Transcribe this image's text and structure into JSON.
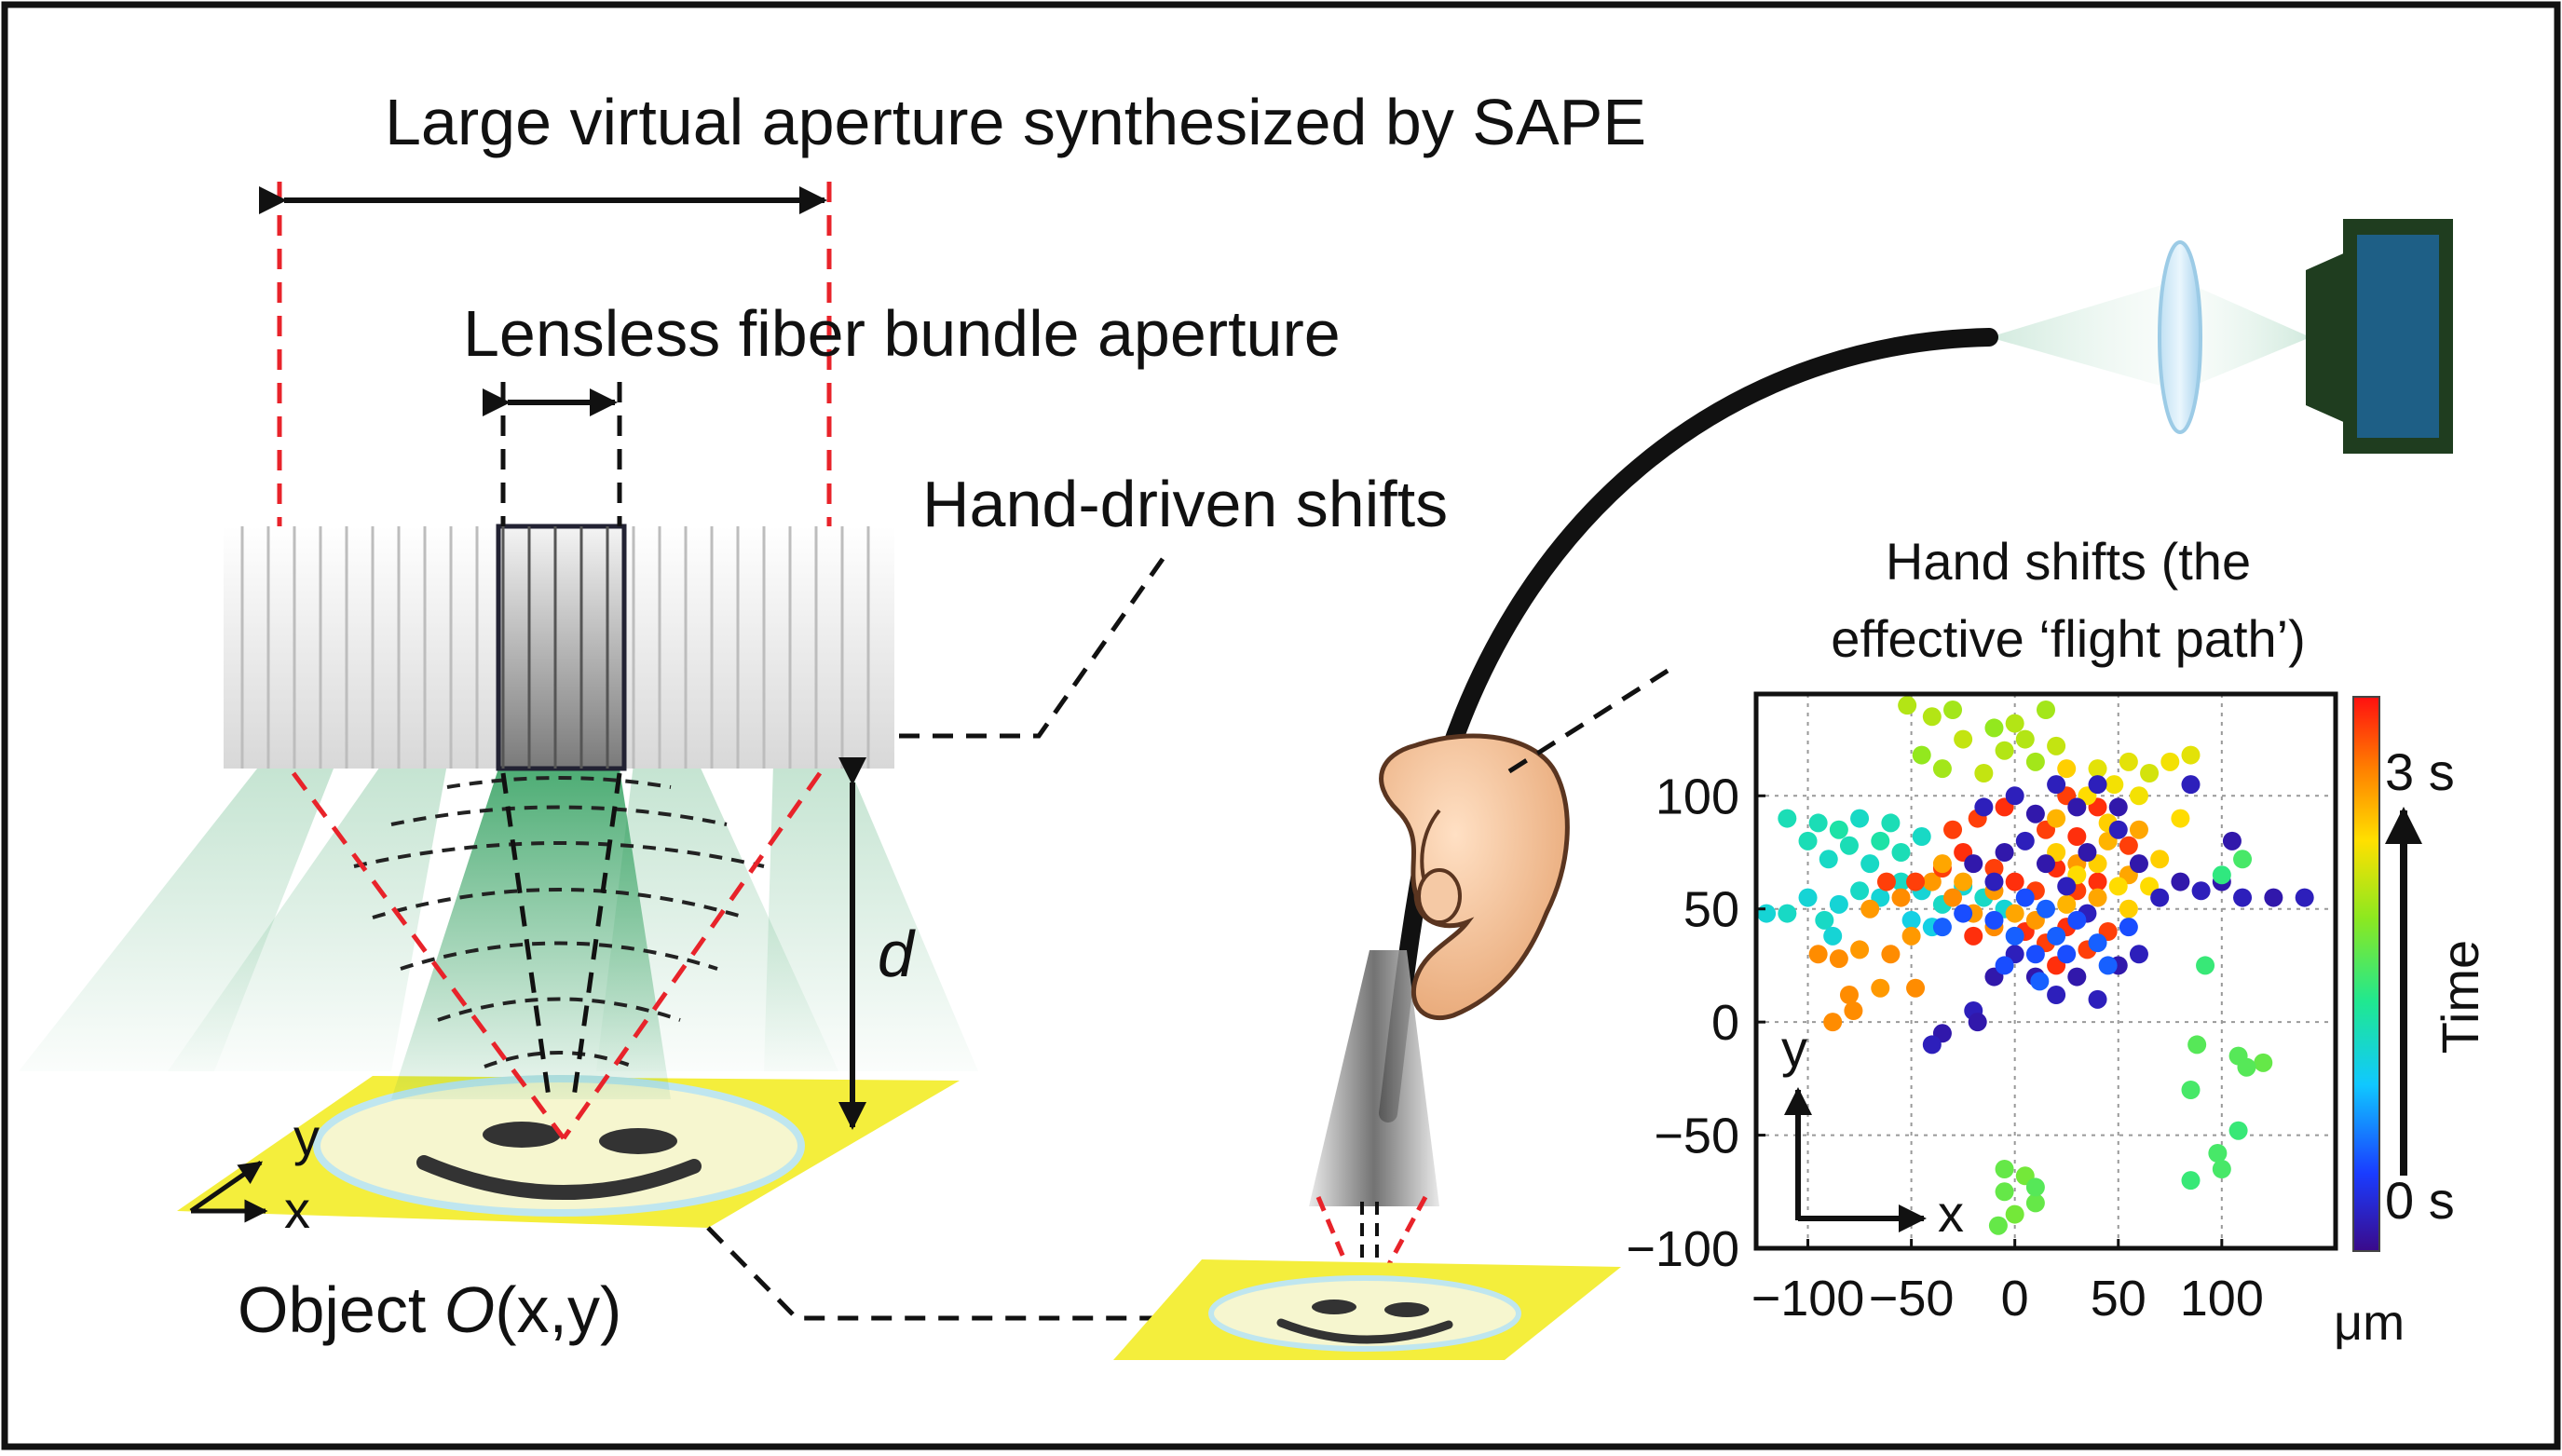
{
  "labels": {
    "large_aperture": "Large virtual aperture synthesized by SAPE",
    "fiber_aperture": "Lensless fiber bundle aperture",
    "hand_shifts": "Hand-driven shifts",
    "distance": "d",
    "axis_y": "y",
    "axis_x": "x",
    "object_prefix": "Object ",
    "object_symbol": "O",
    "object_suffix": "(x,y)"
  },
  "colors": {
    "red_dashed": "#e8232a",
    "beam_green": "#2e9e5c",
    "sample_yellow": "#f4ee3c",
    "camera_blue": "#1e5f86",
    "camera_green": "#1f3d1f"
  },
  "chart_data": {
    "type": "scatter",
    "title_line1": "Hand shifts (the",
    "title_line2": "effective ‘flight path’)",
    "xlim": [
      -125,
      155
    ],
    "ylim": [
      -100,
      145
    ],
    "x_ticks": [
      -100,
      -50,
      0,
      50,
      100
    ],
    "y_ticks": [
      -100,
      -50,
      0,
      50,
      100
    ],
    "x_tick_labels": [
      "−100",
      "−50",
      "0",
      "50",
      "100"
    ],
    "y_tick_labels": [
      "−100",
      "−50",
      "0",
      "50",
      "100"
    ],
    "x_unit": "μm",
    "grid": true,
    "inset_axis_y": "y",
    "inset_axis_x": "x",
    "colorbar": {
      "label": "Time",
      "min_label": "0 s",
      "max_label": "3 s",
      "colors": [
        "#3a0a8a",
        "#1a3cff",
        "#10c8ff",
        "#20e890",
        "#8ce820",
        "#ffe000",
        "#ff8000",
        "#ff1010"
      ]
    },
    "points": [
      [
        -52,
        140,
        0.62
      ],
      [
        -40,
        135,
        0.62
      ],
      [
        -30,
        138,
        0.6
      ],
      [
        -10,
        130,
        0.58
      ],
      [
        0,
        132,
        0.62
      ],
      [
        15,
        138,
        0.6
      ],
      [
        -25,
        125,
        0.64
      ],
      [
        -5,
        120,
        0.62
      ],
      [
        10,
        115,
        0.6
      ],
      [
        -15,
        110,
        0.64
      ],
      [
        -35,
        112,
        0.6
      ],
      [
        -45,
        118,
        0.58
      ],
      [
        5,
        125,
        0.62
      ],
      [
        20,
        122,
        0.64
      ],
      [
        40,
        112,
        0.68
      ],
      [
        55,
        115,
        0.68
      ],
      [
        65,
        110,
        0.66
      ],
      [
        75,
        115,
        0.7
      ],
      [
        85,
        118,
        0.68
      ],
      [
        48,
        105,
        0.7
      ],
      [
        60,
        100,
        0.7
      ],
      [
        -110,
        90,
        0.38
      ],
      [
        -95,
        88,
        0.38
      ],
      [
        -85,
        85,
        0.4
      ],
      [
        -75,
        90,
        0.36
      ],
      [
        -60,
        88,
        0.38
      ],
      [
        -65,
        80,
        0.4
      ],
      [
        -80,
        78,
        0.38
      ],
      [
        -90,
        72,
        0.36
      ],
      [
        -100,
        80,
        0.38
      ],
      [
        -70,
        70,
        0.36
      ],
      [
        -55,
        75,
        0.38
      ],
      [
        -45,
        82,
        0.36
      ],
      [
        -120,
        48,
        0.34
      ],
      [
        -110,
        48,
        0.36
      ],
      [
        -100,
        55,
        0.34
      ],
      [
        -92,
        45,
        0.36
      ],
      [
        -85,
        52,
        0.34
      ],
      [
        -75,
        58,
        0.36
      ],
      [
        -65,
        55,
        0.34
      ],
      [
        -55,
        62,
        0.36
      ],
      [
        -45,
        58,
        0.34
      ],
      [
        -35,
        52,
        0.36
      ],
      [
        -25,
        60,
        0.34
      ],
      [
        -15,
        55,
        0.36
      ],
      [
        -5,
        50,
        0.34
      ],
      [
        -50,
        45,
        0.32
      ],
      [
        -40,
        42,
        0.32
      ],
      [
        -88,
        38,
        0.34
      ],
      [
        -95,
        30,
        0.84
      ],
      [
        -85,
        28,
        0.84
      ],
      [
        -75,
        32,
        0.82
      ],
      [
        -60,
        30,
        0.84
      ],
      [
        -50,
        38,
        0.82
      ],
      [
        -70,
        50,
        0.82
      ],
      [
        -55,
        55,
        0.84
      ],
      [
        -40,
        62,
        0.82
      ],
      [
        -30,
        55,
        0.84
      ],
      [
        -20,
        48,
        0.82
      ],
      [
        -10,
        42,
        0.84
      ],
      [
        -80,
        12,
        0.84
      ],
      [
        -88,
        0,
        0.84
      ],
      [
        -78,
        5,
        0.84
      ],
      [
        -65,
        15,
        0.82
      ],
      [
        -48,
        15,
        0.84
      ],
      [
        -62,
        62,
        0.94
      ],
      [
        -48,
        62,
        0.94
      ],
      [
        -35,
        68,
        0.94
      ],
      [
        -25,
        75,
        0.96
      ],
      [
        -10,
        68,
        0.94
      ],
      [
        0,
        62,
        0.96
      ],
      [
        10,
        58,
        0.94
      ],
      [
        20,
        68,
        0.96
      ],
      [
        30,
        58,
        0.94
      ],
      [
        40,
        62,
        0.96
      ],
      [
        -18,
        90,
        0.94
      ],
      [
        -5,
        95,
        0.96
      ],
      [
        15,
        85,
        0.94
      ],
      [
        30,
        82,
        0.96
      ],
      [
        -30,
        85,
        0.94
      ],
      [
        5,
        40,
        0.96
      ],
      [
        15,
        35,
        0.94
      ],
      [
        25,
        42,
        0.96
      ],
      [
        35,
        32,
        0.94
      ],
      [
        20,
        25,
        0.96
      ],
      [
        45,
        40,
        0.94
      ],
      [
        25,
        100,
        0.94
      ],
      [
        40,
        95,
        0.96
      ],
      [
        55,
        78,
        0.94
      ],
      [
        -20,
        38,
        0.96
      ],
      [
        -35,
        70,
        0.8
      ],
      [
        -25,
        62,
        0.8
      ],
      [
        -10,
        58,
        0.82
      ],
      [
        0,
        48,
        0.8
      ],
      [
        10,
        45,
        0.82
      ],
      [
        25,
        52,
        0.78
      ],
      [
        40,
        55,
        0.8
      ],
      [
        55,
        65,
        0.8
      ],
      [
        30,
        70,
        0.82
      ],
      [
        45,
        80,
        0.78
      ],
      [
        60,
        85,
        0.8
      ],
      [
        20,
        90,
        0.78
      ],
      [
        20,
        75,
        0.74
      ],
      [
        30,
        65,
        0.72
      ],
      [
        40,
        70,
        0.74
      ],
      [
        50,
        60,
        0.72
      ],
      [
        55,
        50,
        0.74
      ],
      [
        65,
        60,
        0.72
      ],
      [
        70,
        72,
        0.74
      ],
      [
        80,
        90,
        0.72
      ],
      [
        45,
        88,
        0.74
      ],
      [
        35,
        100,
        0.72
      ],
      [
        25,
        112,
        0.74
      ],
      [
        -15,
        95,
        0.06
      ],
      [
        0,
        100,
        0.06
      ],
      [
        10,
        92,
        0.04
      ],
      [
        20,
        105,
        0.06
      ],
      [
        30,
        95,
        0.04
      ],
      [
        40,
        105,
        0.06
      ],
      [
        50,
        95,
        0.04
      ],
      [
        5,
        80,
        0.06
      ],
      [
        15,
        70,
        0.04
      ],
      [
        25,
        60,
        0.06
      ],
      [
        35,
        75,
        0.04
      ],
      [
        50,
        85,
        0.06
      ],
      [
        60,
        70,
        0.04
      ],
      [
        70,
        55,
        0.06
      ],
      [
        80,
        62,
        0.04
      ],
      [
        90,
        58,
        0.06
      ],
      [
        100,
        62,
        0.04
      ],
      [
        110,
        55,
        0.06
      ],
      [
        125,
        55,
        0.04
      ],
      [
        140,
        55,
        0.06
      ],
      [
        -5,
        75,
        0.04
      ],
      [
        -10,
        62,
        0.06
      ],
      [
        -20,
        70,
        0.04
      ],
      [
        0,
        30,
        0.06
      ],
      [
        10,
        20,
        0.04
      ],
      [
        20,
        12,
        0.06
      ],
      [
        30,
        20,
        0.04
      ],
      [
        40,
        10,
        0.06
      ],
      [
        50,
        25,
        0.04
      ],
      [
        60,
        30,
        0.06
      ],
      [
        -10,
        20,
        0.04
      ],
      [
        -20,
        5,
        0.06
      ],
      [
        -35,
        -5,
        0.04
      ],
      [
        -40,
        -10,
        0.06
      ],
      [
        -18,
        0,
        0.04
      ],
      [
        85,
        105,
        0.06
      ],
      [
        105,
        80,
        0.04
      ],
      [
        35,
        48,
        0.06
      ],
      [
        -10,
        45,
        0.16
      ],
      [
        0,
        38,
        0.18
      ],
      [
        10,
        30,
        0.16
      ],
      [
        20,
        38,
        0.18
      ],
      [
        30,
        45,
        0.16
      ],
      [
        40,
        35,
        0.18
      ],
      [
        5,
        55,
        0.16
      ],
      [
        15,
        50,
        0.18
      ],
      [
        25,
        30,
        0.16
      ],
      [
        12,
        18,
        0.18
      ],
      [
        -5,
        25,
        0.16
      ],
      [
        45,
        25,
        0.18
      ],
      [
        -25,
        48,
        0.16
      ],
      [
        -35,
        42,
        0.18
      ],
      [
        55,
        42,
        0.16
      ],
      [
        100,
        65,
        0.45
      ],
      [
        110,
        72,
        0.48
      ],
      [
        92,
        25,
        0.46
      ],
      [
        88,
        -10,
        0.5
      ],
      [
        108,
        -15,
        0.5
      ],
      [
        120,
        -18,
        0.52
      ],
      [
        112,
        -20,
        0.5
      ],
      [
        85,
        -30,
        0.48
      ],
      [
        98,
        -58,
        0.48
      ],
      [
        108,
        -48,
        0.46
      ],
      [
        100,
        -65,
        0.48
      ],
      [
        85,
        -70,
        0.46
      ],
      [
        -5,
        -65,
        0.52
      ],
      [
        5,
        -68,
        0.54
      ],
      [
        10,
        -80,
        0.52
      ],
      [
        0,
        -85,
        0.54
      ],
      [
        -8,
        -90,
        0.52
      ],
      [
        10,
        -73,
        0.5
      ],
      [
        -5,
        -75,
        0.52
      ]
    ]
  }
}
